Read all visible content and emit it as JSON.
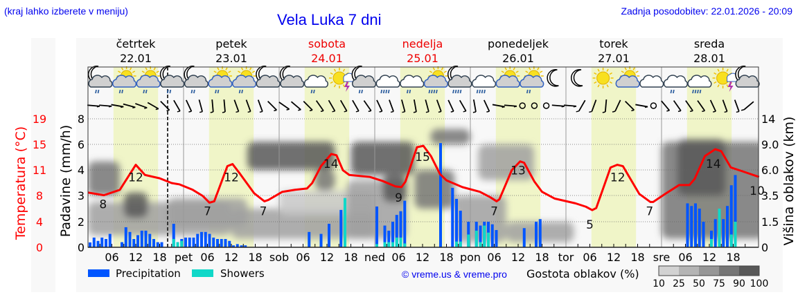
{
  "header": {
    "hint": "(kraj lahko izberete v meniju)",
    "title": "Vela Luka 7 dni",
    "updated": "Zadnja posodobitev: 22.01.2026 - 20:09"
  },
  "colors": {
    "precip": "#0055ff",
    "showers": "#10d8c8",
    "temp": "#ff0000",
    "link": "#0000ee",
    "daylight": "#f0f5c8",
    "weekend": "#ee0000"
  },
  "chart_data": {
    "type": "meteogram",
    "days": [
      {
        "name": "četrtek",
        "date": "22.01",
        "weekend": false,
        "abbr": ""
      },
      {
        "name": "petek",
        "date": "23.01",
        "weekend": false,
        "abbr": "pet"
      },
      {
        "name": "sobota",
        "date": "24.01",
        "weekend": true,
        "abbr": "sob"
      },
      {
        "name": "nedelja",
        "date": "25.01",
        "weekend": true,
        "abbr": "ned"
      },
      {
        "name": "ponedeljek",
        "date": "26.01",
        "weekend": false,
        "abbr": "pon"
      },
      {
        "name": "torek",
        "date": "27.01",
        "weekend": false,
        "abbr": "tor"
      },
      {
        "name": "sreda",
        "date": "28.01",
        "weekend": false,
        "abbr": "sre"
      }
    ],
    "hour_ticks": [
      "06",
      "12",
      "18"
    ],
    "daylight_hours": [
      6.4,
      17.6
    ],
    "now_hour": 20,
    "axes": {
      "temp_label": "Temperatura (°C)",
      "temp_ticks": [
        "0",
        "4",
        "8",
        "11",
        "15",
        "19"
      ],
      "temp_range": [
        0,
        19
      ],
      "precip_label": "Padavine (mm/h)",
      "precip_ticks": [
        "0",
        "2",
        "3",
        "4",
        "6",
        "8"
      ],
      "cloud_label": "Višina oblakov (km)",
      "cloud_ticks": [
        "0",
        "1.5",
        "3.5",
        "6.0",
        "9.0",
        "14"
      ]
    },
    "temperature": [
      [
        0,
        8.1
      ],
      [
        4,
        7.7
      ],
      [
        8,
        8.5
      ],
      [
        12,
        12.2
      ],
      [
        14.3,
        10.7
      ],
      [
        18,
        10.2
      ],
      [
        21,
        9.5
      ],
      [
        23,
        9.3
      ],
      [
        26.3,
        8.5
      ],
      [
        28.8,
        7.6
      ],
      [
        30.5,
        6.6
      ],
      [
        31.7,
        6.8
      ],
      [
        35,
        12.0
      ],
      [
        36.3,
        12.3
      ],
      [
        38,
        11.0
      ],
      [
        41.7,
        8.0
      ],
      [
        44.3,
        6.8
      ],
      [
        45.3,
        7.0
      ],
      [
        48.8,
        8.2
      ],
      [
        52,
        8.5
      ],
      [
        55,
        8.7
      ],
      [
        56.3,
        9.5
      ],
      [
        58.5,
        12.0
      ],
      [
        61.1,
        13.8
      ],
      [
        62.4,
        13.6
      ],
      [
        64,
        11.4
      ],
      [
        65.6,
        10.7
      ],
      [
        70.8,
        10.4
      ],
      [
        74,
        9.8
      ],
      [
        77.2,
        9.0
      ],
      [
        78.7,
        8.9
      ],
      [
        79.7,
        9.7
      ],
      [
        82.6,
        14.8
      ],
      [
        84.2,
        15.0
      ],
      [
        86.1,
        13.5
      ],
      [
        88.4,
        10.8
      ],
      [
        90,
        9.9
      ],
      [
        94,
        8.9
      ],
      [
        98.4,
        8.2
      ],
      [
        101,
        7.4
      ],
      [
        102.6,
        6.8
      ],
      [
        103.3,
        7.1
      ],
      [
        106.4,
        11.4
      ],
      [
        108.5,
        12.7
      ],
      [
        109.5,
        12.5
      ],
      [
        112.1,
        9.7
      ],
      [
        114,
        8.2
      ],
      [
        117.2,
        7.2
      ],
      [
        122.4,
        6.5
      ],
      [
        125,
        6.0
      ],
      [
        126.6,
        5.5
      ],
      [
        127.6,
        5.8
      ],
      [
        131.2,
        11.8
      ],
      [
        132.9,
        12.2
      ],
      [
        134.3,
        12.0
      ],
      [
        138.4,
        7.9
      ],
      [
        141.2,
        6.7
      ],
      [
        141.9,
        6.7
      ],
      [
        145.2,
        8.0
      ],
      [
        148.4,
        9.2
      ],
      [
        151,
        9.2
      ],
      [
        152.3,
        10.1
      ],
      [
        154.9,
        13.5
      ],
      [
        157.5,
        14.5
      ],
      [
        159,
        14.2
      ],
      [
        161.4,
        11.8
      ],
      [
        164,
        11.3
      ],
      [
        168.5,
        10.4
      ]
    ],
    "temp_labels": [
      {
        "hour": 3.8,
        "value": "8"
      },
      {
        "hour": 12,
        "value": "12"
      },
      {
        "hour": 30,
        "value": "7"
      },
      {
        "hour": 36,
        "value": "12"
      },
      {
        "hour": 44,
        "value": "7"
      },
      {
        "hour": 61,
        "value": "14"
      },
      {
        "hour": 78,
        "value": "9"
      },
      {
        "hour": 84,
        "value": "15"
      },
      {
        "hour": 102,
        "value": "7"
      },
      {
        "hour": 108,
        "value": "13"
      },
      {
        "hour": 126,
        "value": "5"
      },
      {
        "hour": 133,
        "value": "12"
      },
      {
        "hour": 141,
        "value": "7"
      },
      {
        "hour": 157,
        "value": "14"
      },
      {
        "hour": 168,
        "value": "10"
      }
    ],
    "precipitation_mm_h": [
      [
        0,
        0.38,
        0
      ],
      [
        1,
        0.76,
        0
      ],
      [
        2,
        0.5,
        0
      ],
      [
        3,
        0.76,
        0
      ],
      [
        4,
        0.65,
        0
      ],
      [
        5,
        1.05,
        0
      ],
      [
        8,
        0.4,
        0
      ],
      [
        9,
        1.57,
        0
      ],
      [
        10,
        1.2,
        0
      ],
      [
        11,
        0.65,
        0
      ],
      [
        12,
        0.95,
        0
      ],
      [
        13,
        1.3,
        0
      ],
      [
        14,
        1.3,
        0
      ],
      [
        15,
        1.05,
        0
      ],
      [
        16,
        0.65,
        0
      ],
      [
        17,
        0.4,
        0
      ],
      [
        18,
        0.4,
        0
      ],
      [
        21,
        1.84,
        0.65
      ],
      [
        22,
        0.4,
        0.4
      ],
      [
        23,
        0.65,
        0.5
      ],
      [
        24,
        0.76,
        0
      ],
      [
        25,
        0.76,
        0
      ],
      [
        26,
        0.76,
        0
      ],
      [
        27,
        1.05,
        0
      ],
      [
        28,
        1.2,
        0
      ],
      [
        29,
        1.2,
        0
      ],
      [
        30,
        1.05,
        0
      ],
      [
        31,
        0.76,
        0
      ],
      [
        32,
        0.65,
        0
      ],
      [
        33,
        0.65,
        0
      ],
      [
        34,
        0.65,
        0
      ],
      [
        35,
        0.5,
        0
      ],
      [
        36,
        0.15,
        0
      ],
      [
        37,
        0.25,
        0
      ],
      [
        38,
        0.15,
        0
      ],
      [
        39,
        0.15,
        0
      ],
      [
        55,
        1.2,
        0
      ],
      [
        58,
        1.05,
        0
      ],
      [
        60,
        1.84,
        0
      ],
      [
        63,
        2.45,
        0
      ],
      [
        64,
        2.9,
        2.9
      ],
      [
        72,
        2.58,
        0.25
      ],
      [
        74,
        1.7,
        0.4
      ],
      [
        75,
        1.3,
        0.4
      ],
      [
        76,
        2.0,
        0.4
      ],
      [
        77,
        2.26,
        0.76
      ],
      [
        78,
        2.4,
        0.76
      ],
      [
        79,
        2.8,
        0.3
      ],
      [
        88,
        6.1,
        0
      ],
      [
        91,
        3.3,
        0
      ],
      [
        92,
        2.87,
        0.45
      ],
      [
        93,
        2.42,
        0.45
      ],
      [
        95,
        2.0,
        1.0
      ],
      [
        97,
        2.0,
        1.3
      ],
      [
        98,
        1.7,
        0.4
      ],
      [
        99,
        2.0,
        1.7
      ],
      [
        100,
        2.0,
        1.15
      ],
      [
        101,
        1.8,
        0
      ],
      [
        102,
        1.35,
        0
      ],
      [
        109,
        1.5,
        0
      ],
      [
        112,
        2.0,
        0
      ],
      [
        113,
        2.1,
        0
      ],
      [
        150,
        2.7,
        0
      ],
      [
        151,
        2.6,
        0
      ],
      [
        152,
        2.7,
        0
      ],
      [
        153,
        2.5,
        0
      ],
      [
        154,
        2.0,
        0
      ],
      [
        156,
        1.3,
        0.65
      ],
      [
        157,
        2.1,
        0
      ],
      [
        158,
        2.5,
        2.5
      ],
      [
        159,
        2.1,
        0
      ],
      [
        160,
        2.6,
        0
      ],
      [
        161,
        3.4,
        1.0
      ],
      [
        162,
        3.8,
        2.0
      ]
    ],
    "cloud_areas": [
      {
        "hours": [
          0,
          36
        ],
        "km": [
          0.7,
          3.0
        ],
        "density": 50
      },
      {
        "hours": [
          0,
          8
        ],
        "km": [
          3.5,
          7
        ],
        "density": 75
      },
      {
        "hours": [
          9,
          15
        ],
        "km": [
          1.8,
          3.8
        ],
        "density": 90
      },
      {
        "hours": [
          20,
          40
        ],
        "km": [
          1.2,
          3.3
        ],
        "density": 50
      },
      {
        "hours": [
          36,
          72
        ],
        "km": [
          0.5,
          2.5
        ],
        "density": 50
      },
      {
        "hours": [
          40,
          62
        ],
        "km": [
          6,
          9.5
        ],
        "density": 90
      },
      {
        "hours": [
          48,
          72
        ],
        "km": [
          2,
          4
        ],
        "density": 25
      },
      {
        "hours": [
          57,
          62
        ],
        "km": [
          4,
          6
        ],
        "density": 75
      },
      {
        "hours": [
          66,
          82
        ],
        "km": [
          5.5,
          9.5
        ],
        "density": 90
      },
      {
        "hours": [
          65,
          80
        ],
        "km": [
          0.5,
          5
        ],
        "density": 50
      },
      {
        "hours": [
          74,
          80
        ],
        "km": [
          3,
          5.5
        ],
        "density": 90
      },
      {
        "hours": [
          82,
          92
        ],
        "km": [
          2.5,
          6
        ],
        "density": 75
      },
      {
        "hours": [
          86,
          96
        ],
        "km": [
          9,
          12
        ],
        "density": 75
      },
      {
        "hours": [
          92,
          105
        ],
        "km": [
          0.3,
          3.5
        ],
        "density": 50
      },
      {
        "hours": [
          98,
          112
        ],
        "km": [
          5,
          9
        ],
        "density": 50
      },
      {
        "hours": [
          105,
          122
        ],
        "km": [
          0.3,
          1.5
        ],
        "density": 50
      },
      {
        "hours": [
          144,
          170
        ],
        "km": [
          0.5,
          9.5
        ],
        "density": 75
      },
      {
        "hours": [
          148,
          160
        ],
        "km": [
          3.5,
          10
        ],
        "density": 90
      }
    ],
    "weather_icons": [
      "moon-cloud-rain2",
      "sun-cloud-rain2",
      "sun-cloud-rain2",
      "moon-cloud-rain2",
      "moon-cloud-rain2",
      "sun-cloud-rain2",
      "sun-cloud-rain2",
      "moon-cloud",
      "moon-cloud",
      "cloud-rain2",
      "sun-thunder",
      "moon-cloud-rain2",
      "cloud-rain4",
      "cloud-rain2",
      "sun-cloud-rain4",
      "moon-cloud-rain4",
      "cloud-rain4",
      "sun-cloud",
      "sun-cloud-rain2",
      "moon",
      "moon",
      "sun",
      "sun-cloud",
      "cloud",
      "cloud-rain2",
      "cloud-rain4",
      "sun-thunder",
      "moon-cloud"
    ],
    "wind_dir_deg": [
      85,
      85,
      80,
      75,
      70,
      60,
      45,
      30,
      25,
      15,
      5,
      5,
      20,
      20,
      20,
      45,
      55,
      50,
      45,
      35,
      30,
      30,
      30,
      35,
      25,
      20,
      15,
      10,
      15,
      20,
      25,
      30,
      10,
      25,
      80,
      85,
      "calm",
      "calm",
      "calm",
      85,
      85,
      -30,
      -20,
      -5,
      -25,
      45,
      80,
      "calm",
      40,
      35,
      35,
      35,
      25,
      20,
      20,
      -50
    ],
    "legend": {
      "precip": "Precipitation",
      "showers": "Showers"
    },
    "cloud_legend": {
      "title": "Gostota oblakov (%)",
      "ticks": [
        "10",
        "25",
        "50",
        "75",
        "90",
        "100"
      ],
      "colors": [
        "#d2d2d2",
        "#b4b4b4",
        "#969696",
        "#767676",
        "#585858"
      ]
    },
    "credit": "© vreme.us & vreme.pro"
  }
}
